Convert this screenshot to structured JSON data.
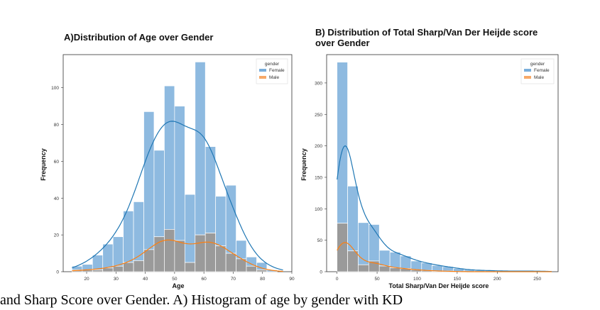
{
  "caption": "and Sharp Score over Gender. A) Histogram of age by gender with KD",
  "colors": {
    "female": "#7aaedb",
    "male": "#f7a968",
    "female_kde": "#1f77b4",
    "male_kde": "#ff7f0e",
    "overlap": "#8f8f8f"
  },
  "chart_data": [
    {
      "type": "bar",
      "title": "A)Distribution of Age over Gender",
      "xlabel": "Age",
      "ylabel": "Frequency",
      "xlim": [
        12,
        90
      ],
      "ylim": [
        0,
        118
      ],
      "xticks": [
        20,
        30,
        40,
        50,
        60,
        70,
        80,
        90
      ],
      "yticks": [
        0,
        20,
        40,
        60,
        80,
        100
      ],
      "legend": {
        "title": "gender",
        "placement": "top-right",
        "entries": [
          "Female",
          "Male"
        ]
      },
      "bin_edges": [
        15.0,
        18.5,
        22.0,
        25.5,
        29.0,
        32.5,
        36.0,
        39.5,
        43.0,
        46.5,
        50.0,
        53.5,
        57.0,
        60.5,
        64.0,
        67.5,
        71.0,
        74.5,
        78.0,
        81.5,
        85.0
      ],
      "series": [
        {
          "name": "Female",
          "values": [
            3,
            4,
            9,
            15,
            19,
            33,
            38,
            87,
            66,
            101,
            90,
            42,
            114,
            68,
            41,
            47,
            17,
            8,
            5,
            1
          ]
        },
        {
          "name": "Male",
          "values": [
            1,
            1,
            1,
            2,
            3,
            5,
            6,
            12,
            19,
            23,
            17,
            5,
            20,
            21,
            14,
            10,
            7,
            3,
            1,
            0
          ]
        }
      ]
    },
    {
      "type": "bar",
      "title": "B) Distribution of Total Sharp/Van Der Heijde score over Gender",
      "xlabel": "Total Sharp/Van Der Heijde score",
      "ylabel": "Frequency",
      "xlim": [
        -13,
        276
      ],
      "ylim": [
        0,
        345
      ],
      "xticks": [
        0,
        50,
        100,
        150,
        200,
        250
      ],
      "yticks": [
        0,
        50,
        100,
        150,
        200,
        250,
        300
      ],
      "legend": {
        "title": "gender",
        "placement": "top-right",
        "entries": [
          "Female",
          "Male"
        ]
      },
      "bin_edges": [
        0,
        13.2,
        26.4,
        39.6,
        52.8,
        66.0,
        79.2,
        92.4,
        105.6,
        118.8,
        132.0,
        145.2,
        158.4,
        171.6,
        184.8,
        198.0,
        211.2,
        224.4,
        237.6,
        250.8,
        264.0
      ],
      "series": [
        {
          "name": "Female",
          "values": [
            333,
            136,
            78,
            75,
            34,
            31,
            25,
            17,
            14,
            10,
            8,
            5,
            3,
            2,
            2,
            1,
            1,
            1,
            1,
            1
          ]
        },
        {
          "name": "Male",
          "values": [
            77,
            33,
            11,
            17,
            9,
            6,
            5,
            3,
            2,
            1,
            1,
            0,
            0,
            0,
            0,
            0,
            0,
            0,
            0,
            0
          ]
        }
      ]
    }
  ]
}
